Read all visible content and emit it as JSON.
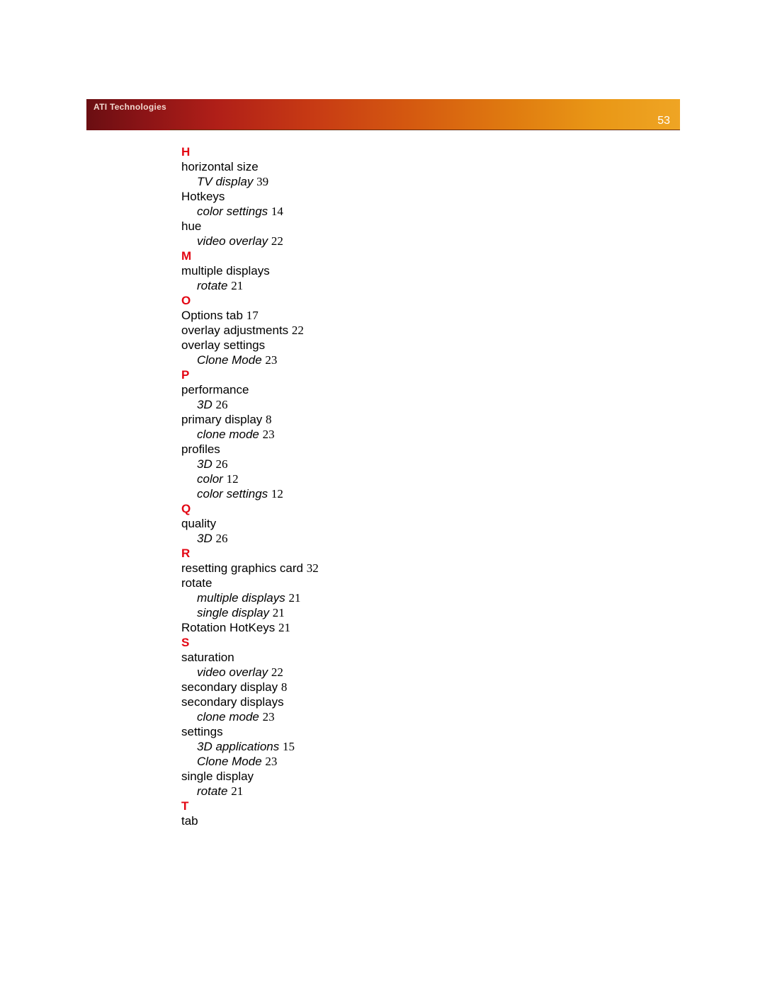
{
  "banner": {
    "brand": "ATI Technologies",
    "page_number": "53"
  },
  "colors": {
    "letter": "#e30613",
    "text": "#000000",
    "banner_text": "#f2d9d0",
    "page_number": "#ffffff"
  },
  "index": {
    "H": {
      "letter": "H",
      "horizontal_size": "horizontal size",
      "horizontal_size_sub1_label": "TV display",
      "horizontal_size_sub1_pg": "39",
      "hotkeys": "Hotkeys",
      "hotkeys_sub1_label": "color settings",
      "hotkeys_sub1_pg": "14",
      "hue": "hue",
      "hue_sub1_label": "video overlay",
      "hue_sub1_pg": "22"
    },
    "M": {
      "letter": "M",
      "multiple_displays": "multiple displays",
      "multiple_displays_sub1_label": "rotate",
      "multiple_displays_sub1_pg": "21"
    },
    "O": {
      "letter": "O",
      "options_tab_label": "Options tab",
      "options_tab_pg": "17",
      "overlay_adjustments_label": "overlay adjustments",
      "overlay_adjustments_pg": "22",
      "overlay_settings": "overlay settings",
      "overlay_settings_sub1_label": "Clone Mode",
      "overlay_settings_sub1_pg": "23"
    },
    "P": {
      "letter": "P",
      "performance": "performance",
      "performance_sub1_label": "3D",
      "performance_sub1_pg": "26",
      "primary_display_label": "primary display",
      "primary_display_pg": "8",
      "primary_display_sub1_label": "clone mode",
      "primary_display_sub1_pg": "23",
      "profiles": "profiles",
      "profiles_sub1_label": "3D",
      "profiles_sub1_pg": "26",
      "profiles_sub2_label": "color",
      "profiles_sub2_pg": "12",
      "profiles_sub3_label": "color settings",
      "profiles_sub3_pg": "12"
    },
    "Q": {
      "letter": "Q",
      "quality": "quality",
      "quality_sub1_label": "3D",
      "quality_sub1_pg": "26"
    },
    "R": {
      "letter": "R",
      "resetting_label": "resetting graphics card",
      "resetting_pg": "32",
      "rotate": "rotate",
      "rotate_sub1_label": "multiple displays",
      "rotate_sub1_pg": "21",
      "rotate_sub2_label": "single display",
      "rotate_sub2_pg": "21",
      "rotation_hotkeys_label": "Rotation HotKeys",
      "rotation_hotkeys_pg": "21"
    },
    "S": {
      "letter": "S",
      "saturation": "saturation",
      "saturation_sub1_label": "video overlay",
      "saturation_sub1_pg": "22",
      "secondary_display_label": "secondary display",
      "secondary_display_pg": "8",
      "secondary_displays": "secondary displays",
      "secondary_displays_sub1_label": "clone mode",
      "secondary_displays_sub1_pg": "23",
      "settings": "settings",
      "settings_sub1_label": "3D applications",
      "settings_sub1_pg": "15",
      "settings_sub2_label": "Clone Mode",
      "settings_sub2_pg": "23",
      "single_display": "single display",
      "single_display_sub1_label": "rotate",
      "single_display_sub1_pg": "21"
    },
    "T": {
      "letter": "T",
      "tab": "tab"
    }
  }
}
